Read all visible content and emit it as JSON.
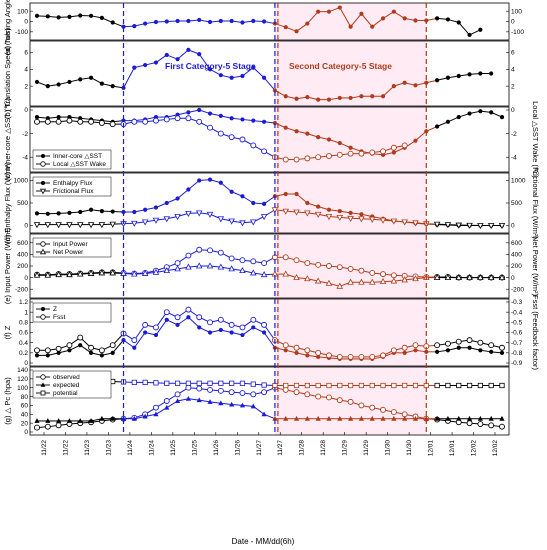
{
  "figure": {
    "xlabel": "Date - MM/dd(6h)",
    "stage1_label": "First Category-5 Stage",
    "stage2_label": "Second Category-5 Stage",
    "colors": {
      "stage1": "#1b1bd6",
      "stage2": "#b03a1a",
      "base": "#000000",
      "shade": "#ffd3e6"
    }
  },
  "chart_data": [
    {
      "id": "a",
      "type": "line",
      "ylabel": "(a) Turning Angle (°)",
      "ylim": [
        -150,
        150
      ],
      "yticks": [
        -100,
        0,
        100
      ],
      "right_axis": {
        "ylabel": "",
        "ylim": [
          -150,
          150
        ],
        "yticks": [
          -100,
          0,
          100
        ]
      },
      "series": [
        {
          "values": [
            55,
            50,
            40,
            45,
            58,
            55,
            35,
            -10,
            -50,
            -45,
            -20,
            -5,
            0,
            5,
            5,
            15,
            -5,
            5,
            5,
            -10,
            5,
            0,
            -20,
            -55,
            -95,
            -20,
            95,
            95,
            135,
            -50,
            75,
            -50,
            30,
            95,
            30,
            10,
            10,
            30,
            20,
            -10,
            -130,
            -80
          ],
          "marker": "filled-circle"
        }
      ]
    },
    {
      "id": "b",
      "type": "line",
      "ylabel": "(b) Translation Speed (m/s)",
      "ylim": [
        0,
        7
      ],
      "yticks": [
        2,
        4,
        6
      ],
      "right_axis": {
        "ylabel": "",
        "ylim": [
          0,
          7
        ],
        "yticks": [
          2,
          4,
          6
        ]
      },
      "series": [
        {
          "values": [
            2.5,
            2.0,
            2.2,
            2.5,
            2.8,
            3.0,
            2.3,
            2.0,
            1.8,
            4.2,
            4.5,
            4.8,
            5.7,
            5.2,
            6.3,
            5.8,
            4.0,
            3.3,
            3.0,
            3.2,
            4.2,
            3.0,
            1.5,
            0.8,
            0.5,
            0.7,
            0.4,
            0.4,
            0.6,
            0.6,
            0.8,
            0.8,
            0.8,
            2.0,
            2.4,
            2.1,
            2.4,
            2.7,
            3.0,
            3.2,
            3.4,
            3.5,
            3.5
          ],
          "marker": "filled-circle"
        }
      ]
    },
    {
      "id": "c",
      "type": "line",
      "ylabel": "(c) Inner-core △SST (℃)",
      "ylim": [
        -5,
        0
      ],
      "yticks": [
        -4,
        -2,
        0
      ],
      "right_axis": {
        "ylabel": "Local △SST Wake (℃)",
        "ylim": [
          -5,
          0
        ],
        "yticks": [
          -4,
          -2,
          0
        ]
      },
      "legend": {
        "position": "bottom-left",
        "entries": [
          "Inner-core △SST",
          "Local △SST Wake"
        ]
      },
      "series": [
        {
          "name": "Inner-core △SST",
          "marker": "filled-circle",
          "values": [
            -0.6,
            -0.7,
            -0.6,
            -0.6,
            -0.7,
            -0.8,
            -0.9,
            -1.0,
            -0.9,
            -0.9,
            -0.8,
            -0.6,
            -0.6,
            -0.4,
            -0.2,
            0.0,
            -0.3,
            -0.5,
            -0.7,
            -0.8,
            -0.9,
            -1.0,
            -1.1,
            -1.5,
            -1.8,
            -2.0,
            -2.3,
            -2.5,
            -2.8,
            -3.2,
            -3.5,
            -3.7,
            -3.8,
            -3.6,
            -3.2,
            -2.6,
            -1.8,
            -1.4,
            -1.0,
            -0.6,
            -0.3,
            -0.1,
            -0.2,
            -0.6
          ]
        },
        {
          "name": "Local △SST Wake",
          "marker": "open-circle",
          "values": [
            -1.0,
            -1.0,
            -1.0,
            -0.9,
            -1.0,
            -1.0,
            -1.1,
            -1.2,
            -1.2,
            -1.0,
            -1.0,
            -0.9,
            -0.8,
            -0.7,
            -0.7,
            -1.0,
            -1.5,
            -2.0,
            -2.3,
            -2.5,
            -3.0,
            -3.5,
            -4.0,
            -4.2,
            -4.2,
            -4.1,
            -4.0,
            -3.9,
            -3.8,
            -3.7,
            -3.7,
            -3.6,
            -3.5,
            -3.2,
            -3.0
          ]
        }
      ]
    },
    {
      "id": "d",
      "type": "line",
      "ylabel": "(d) Enthalpy Flux (W/m²)",
      "ylim": [
        -100,
        1100
      ],
      "yticks": [
        0,
        500,
        1000
      ],
      "right_axis": {
        "ylabel": "Frictional Flux (W/m²)",
        "ylim": [
          -100,
          1100
        ],
        "yticks": [
          0,
          500,
          1000
        ]
      },
      "legend": {
        "position": "top-left",
        "entries": [
          "Enthalpy Flux",
          "Frictional Flux"
        ]
      },
      "series": [
        {
          "name": "Enthalpy Flux",
          "marker": "filled-circle",
          "values": [
            270,
            260,
            270,
            280,
            300,
            350,
            320,
            310,
            300,
            300,
            350,
            400,
            500,
            600,
            800,
            1000,
            1020,
            950,
            750,
            650,
            500,
            480,
            650,
            700,
            700,
            500,
            420,
            350,
            320,
            280,
            250,
            200,
            150,
            100,
            80,
            50,
            30,
            20,
            10,
            0,
            0,
            0,
            0,
            0
          ]
        },
        {
          "name": "Frictional Flux",
          "marker": "open-triangle-down",
          "values": [
            20,
            20,
            20,
            20,
            20,
            20,
            20,
            30,
            40,
            50,
            80,
            120,
            150,
            200,
            270,
            280,
            250,
            150,
            100,
            60,
            80,
            200,
            350,
            320,
            300,
            280,
            250,
            200,
            180,
            160,
            150,
            140,
            120,
            100,
            80,
            60,
            40,
            30,
            20,
            10,
            5,
            0,
            0,
            0
          ]
        }
      ]
    },
    {
      "id": "e",
      "type": "line",
      "ylabel": "(e) Input Power (W/m²)",
      "ylim": [
        -300,
        700
      ],
      "yticks": [
        -200,
        0,
        200,
        400,
        600
      ],
      "right_axis": {
        "ylabel": "Net Power (W/m²)",
        "ylim": [
          -300,
          700
        ],
        "yticks": [
          -200,
          0,
          200,
          400,
          600
        ]
      },
      "legend": {
        "position": "top-left",
        "entries": [
          "Input Power",
          "Net Power"
        ]
      },
      "series": [
        {
          "name": "Input Power",
          "marker": "open-circle",
          "values": [
            50,
            50,
            60,
            60,
            70,
            80,
            90,
            90,
            80,
            70,
            80,
            120,
            180,
            250,
            380,
            480,
            470,
            430,
            330,
            300,
            280,
            250,
            350,
            350,
            300,
            250,
            220,
            200,
            180,
            150,
            120,
            80,
            60,
            40,
            30,
            20,
            10,
            10,
            10,
            0,
            0,
            0,
            0,
            0
          ]
        },
        {
          "name": "Net Power",
          "marker": "open-triangle",
          "values": [
            40,
            40,
            50,
            50,
            60,
            70,
            80,
            80,
            70,
            60,
            70,
            90,
            120,
            150,
            180,
            200,
            200,
            180,
            150,
            120,
            80,
            50,
            60,
            60,
            0,
            -20,
            -60,
            -100,
            -150,
            -80,
            -80,
            -80,
            -70,
            -60,
            -40,
            -20,
            0,
            0,
            0,
            0,
            0,
            0,
            0,
            0
          ]
        }
      ]
    },
    {
      "id": "f",
      "type": "line",
      "ylabel": "(f) Z",
      "ylim": [
        0,
        1.2
      ],
      "yticks": [
        0,
        0.2,
        0.4,
        0.6,
        0.8,
        1.0,
        1.2
      ],
      "right_axis": {
        "ylabel": "Fsst (Feedback factor)",
        "ylim": [
          -0.9,
          -0.3
        ],
        "yticks": [
          -0.9,
          -0.8,
          -0.7,
          -0.6,
          -0.5,
          -0.4,
          -0.3
        ]
      },
      "legend": {
        "position": "top-left",
        "entries": [
          "Z",
          "Fsst"
        ]
      },
      "series": [
        {
          "name": "Z",
          "marker": "filled-circle",
          "values": [
            0.15,
            0.15,
            0.2,
            0.25,
            0.35,
            0.2,
            0.15,
            0.2,
            0.45,
            0.3,
            0.6,
            0.55,
            0.85,
            0.75,
            0.9,
            0.7,
            0.6,
            0.65,
            0.6,
            0.55,
            0.7,
            0.6,
            0.3,
            0.25,
            0.2,
            0.15,
            0.12,
            0.1,
            0.08,
            0.08,
            0.08,
            0.08,
            0.12,
            0.2,
            0.2,
            0.25,
            0.22,
            0.22,
            0.25,
            0.3,
            0.3,
            0.25,
            0.22,
            0.2
          ]
        },
        {
          "name": "Fsst",
          "marker": "open-circle",
          "values": [
            0.25,
            0.25,
            0.28,
            0.35,
            0.5,
            0.3,
            0.25,
            0.35,
            0.58,
            0.45,
            0.75,
            0.7,
            1.0,
            0.9,
            1.05,
            0.9,
            0.8,
            0.85,
            0.75,
            0.7,
            0.85,
            0.75,
            0.45,
            0.35,
            0.3,
            0.25,
            0.2,
            0.15,
            0.12,
            0.12,
            0.12,
            0.12,
            0.15,
            0.25,
            0.3,
            0.35,
            0.33,
            0.35,
            0.38,
            0.42,
            0.45,
            0.4,
            0.35,
            0.3
          ]
        }
      ]
    },
    {
      "id": "g",
      "type": "line",
      "ylabel": "(g) △ Pc (hpa)",
      "ylim": [
        0,
        140
      ],
      "yticks": [
        0,
        20,
        40,
        60,
        80,
        100,
        120,
        140
      ],
      "legend": {
        "position": "top-left",
        "entries": [
          "observed",
          "expected",
          "potential"
        ]
      },
      "series": [
        {
          "name": "observed",
          "marker": "open-circle",
          "values": [
            10,
            12,
            15,
            18,
            20,
            22,
            25,
            28,
            30,
            32,
            40,
            55,
            70,
            85,
            100,
            98,
            95,
            93,
            90,
            88,
            85,
            90,
            100,
            95,
            90,
            85,
            80,
            78,
            72,
            68,
            60,
            55,
            50,
            45,
            40,
            35,
            30,
            28,
            25,
            22,
            20,
            18,
            15,
            12
          ]
        },
        {
          "name": "expected",
          "marker": "filled-triangle",
          "values": [
            25,
            25,
            25,
            25,
            25,
            25,
            30,
            30,
            30,
            30,
            35,
            40,
            55,
            70,
            75,
            72,
            68,
            65,
            62,
            60,
            58,
            40,
            30,
            30,
            30,
            30,
            30,
            30,
            30,
            30,
            30,
            30,
            30,
            30,
            30,
            30,
            30,
            30,
            30,
            30,
            30,
            30,
            30,
            30
          ]
        },
        {
          "name": "potential",
          "marker": "open-square",
          "values": [
            115,
            115,
            115,
            115,
            115,
            115,
            114,
            114,
            113,
            112,
            112,
            111,
            110,
            110,
            110,
            110,
            110,
            110,
            110,
            110,
            108,
            106,
            105,
            105,
            105,
            105,
            105,
            105,
            105,
            105,
            105,
            105,
            105,
            105,
            105,
            105,
            105,
            105,
            105,
            105,
            105,
            105,
            105,
            105
          ]
        }
      ]
    }
  ],
  "x_axis": {
    "tick_labels": [
      "11/22",
      "11/22",
      "11/23",
      "11/23",
      "11/24",
      "11/24",
      "11/25",
      "11/25",
      "11/26",
      "11/26",
      "11/27",
      "11/27",
      "11/28",
      "11/28",
      "11/29",
      "11/29",
      "11/30",
      "11/30",
      "12/01",
      "12/01",
      "12/02",
      "12/02"
    ]
  }
}
